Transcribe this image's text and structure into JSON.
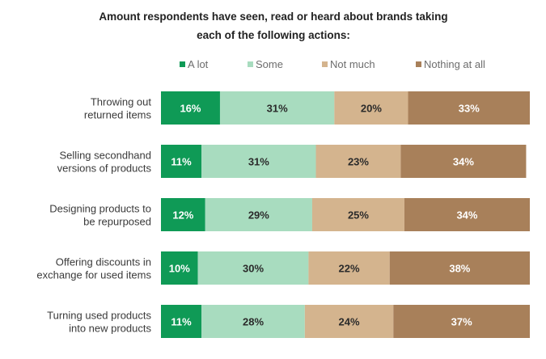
{
  "chart_data": {
    "type": "bar",
    "orientation": "horizontal",
    "stacked": true,
    "title_lines": [
      "Amount respondents have seen, read or heard about brands taking",
      "each of the following actions:"
    ],
    "xlabel": "",
    "ylabel": "",
    "xlim": [
      0,
      100
    ],
    "grid": false,
    "legend_position": "top",
    "categories": [
      [
        "Throwing out",
        "returned items"
      ],
      [
        "Selling secondhand",
        "versions of products"
      ],
      [
        "Designing products to",
        "be repurposed"
      ],
      [
        "Offering discounts in",
        "exchange for used items"
      ],
      [
        "Turning used products",
        "into new products"
      ]
    ],
    "series": [
      {
        "name": "A lot",
        "color": "#0f9a56",
        "label_color": "#ffffff",
        "values": [
          16,
          11,
          12,
          10,
          11
        ]
      },
      {
        "name": "Some",
        "color": "#a8dcbf",
        "label_color": "#2b2b2b",
        "values": [
          31,
          31,
          29,
          30,
          28
        ]
      },
      {
        "name": "Not much",
        "color": "#d4b48e",
        "label_color": "#2b2b2b",
        "values": [
          20,
          23,
          25,
          22,
          24
        ]
      },
      {
        "name": "Nothing at all",
        "color": "#a8805a",
        "label_color": "#ffffff",
        "values": [
          33,
          34,
          34,
          38,
          37
        ]
      }
    ],
    "value_suffix": "%"
  }
}
